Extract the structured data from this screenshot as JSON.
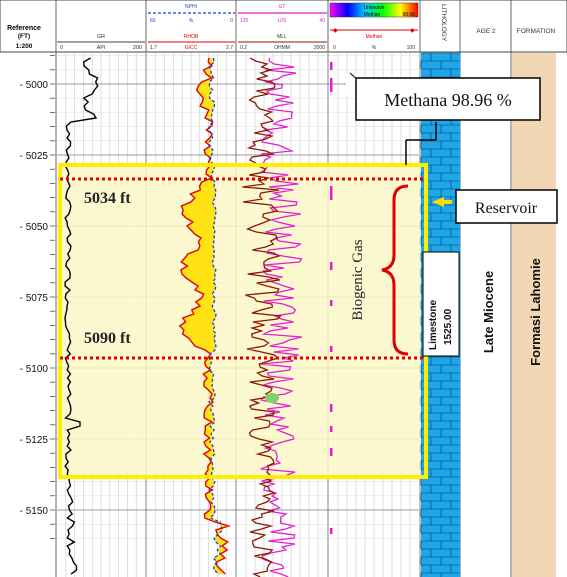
{
  "header": {
    "reference_label": "Reference",
    "unit_label": "(FT)",
    "scale_label": "1:200",
    "tracks": [
      {
        "name": "GR",
        "unit": "API",
        "min": "0",
        "max": "200"
      },
      {
        "name": "NPHI",
        "unit": "%",
        "min": "60",
        "max": "0",
        "sub_name": "RHOB",
        "sub_unit": "G/CC",
        "sub_min": "1.7",
        "sub_max": "2.7"
      },
      {
        "name": "GT",
        "unit": "U/S",
        "min": "120",
        "max": "40",
        "sub_name": "MLL",
        "sub_unit": "OHMM",
        "sub_min": "0.2",
        "sub_max": "2000"
      },
      {
        "name": "Unknown",
        "unit": "",
        "min": "",
        "max": "",
        "sub_name": "Methan",
        "sub_value": "98.96",
        "sub2_name": "Methan",
        "sub2_min": "0",
        "sub2_unit": "%",
        "sub2_max": "100"
      }
    ],
    "lithology_label": "LITHOLOGY",
    "age_label": "AGE 2",
    "formation_label": "FORMATION"
  },
  "depth_ticks": [
    "5000",
    "5025",
    "5050",
    "5075",
    "5100",
    "5125",
    "5150"
  ],
  "annotations": {
    "methane_callout": "Methana 98.96 %",
    "reservoir_callout": "Reservoir",
    "top_depth": "5034 ft",
    "bottom_depth": "5090 ft",
    "gas_label": "Biogenic Gas",
    "lithology_name": "Limestone",
    "lithology_value": "1525.00",
    "age": "Late Miocene",
    "formation": "Formasi Lahomie"
  },
  "colors": {
    "highlight_box": "#ffee00",
    "depth_markers": "#e00000",
    "limestone": "#1ea7e8",
    "formation_fill": "#f2d7b5",
    "gr_curve": "#000000",
    "rhob_curve": "#e00000",
    "nphi_curve": "#1a3fd8",
    "crossover_fill": "#ffe000",
    "resistivity_deep": "#8b1a00",
    "resistivity_shallow": "#e020d0",
    "callout_arrow": "#ffdd00"
  }
}
